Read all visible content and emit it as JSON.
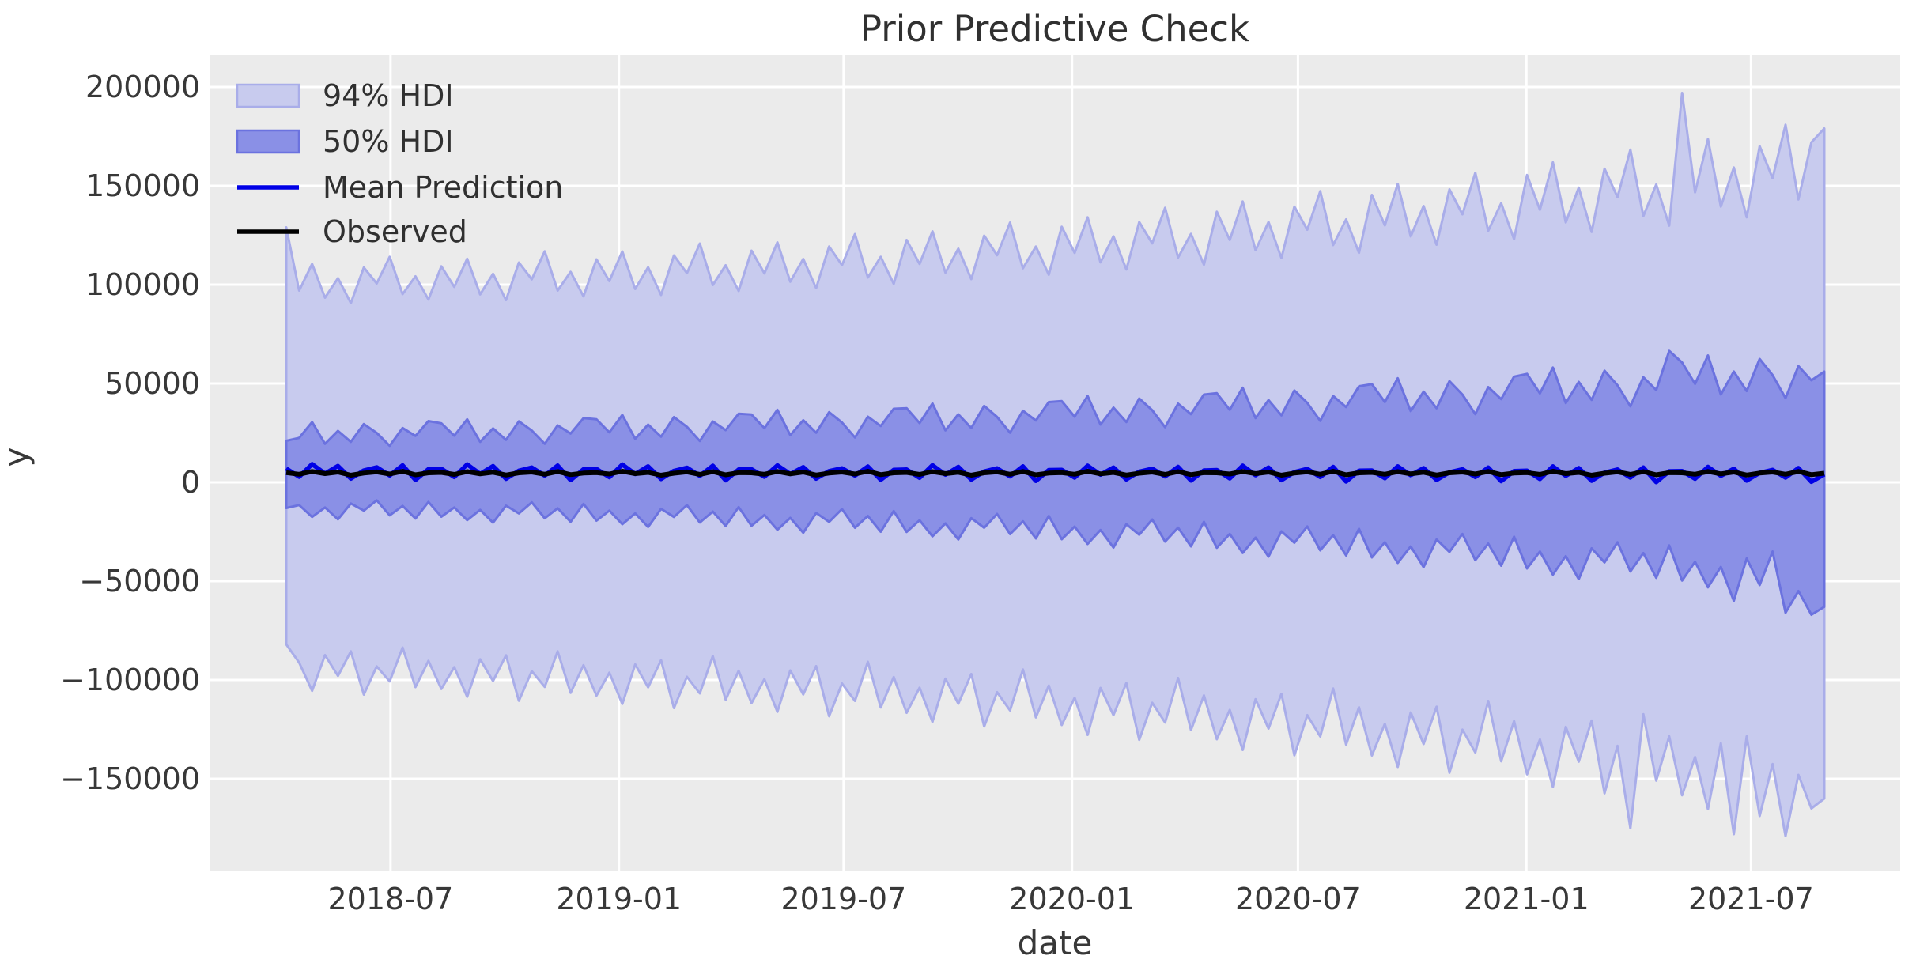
{
  "title": "Prior Predictive Check",
  "chart_data": {
    "type": "area",
    "title": "Prior Predictive Check",
    "xlabel": "date",
    "ylabel": "y",
    "grid": true,
    "legend_position": "upper left",
    "x_range": [
      "2018-04-08",
      "2021-08-29"
    ],
    "n_points": 120,
    "ylim": [
      -196400,
      216000
    ],
    "x_ticks": [
      {
        "label": "2018-07",
        "date": "2018-07-01"
      },
      {
        "label": "2019-01",
        "date": "2019-01-01"
      },
      {
        "label": "2019-07",
        "date": "2019-07-01"
      },
      {
        "label": "2020-01",
        "date": "2020-01-01"
      },
      {
        "label": "2020-07",
        "date": "2020-07-01"
      },
      {
        "label": "2021-01",
        "date": "2021-01-01"
      },
      {
        "label": "2021-07",
        "date": "2021-07-01"
      }
    ],
    "y_ticks": [
      {
        "label": "200000",
        "value": 200000
      },
      {
        "label": "150000",
        "value": 150000
      },
      {
        "label": "100000",
        "value": 100000
      },
      {
        "label": "50000",
        "value": 50000
      },
      {
        "label": "0",
        "value": 0
      },
      {
        "label": "−50000",
        "value": -50000
      },
      {
        "label": "−100000",
        "value": -100000
      },
      {
        "label": "−150000",
        "value": -150000
      }
    ],
    "legend": [
      {
        "label": "94% HDI",
        "kind": "patch",
        "fill": "#c8cbee",
        "stroke": "#a9ade9"
      },
      {
        "label": "50% HDI",
        "kind": "patch",
        "fill": "#8a90e6",
        "stroke": "#6b72df"
      },
      {
        "label": "Mean Prediction",
        "kind": "line",
        "stroke": "#0000e6"
      },
      {
        "label": "Observed",
        "kind": "line",
        "stroke": "#000000"
      }
    ],
    "colors": {
      "background": "#ffffff",
      "axes_background": "#ebebeb",
      "grid": "#ffffff",
      "hdi94_fill": "#c8cbee",
      "hdi94_edge": "#a9ade9",
      "hdi50_fill": "#8a90e6",
      "hdi50_edge": "#6b72df",
      "mean_line": "#0000e6",
      "observed_line": "#000000",
      "text": "#383838"
    },
    "series": {
      "hdi94_upper": [
        129000,
        97000,
        110500,
        93400,
        103300,
        90700,
        108700,
        100600,
        114100,
        95200,
        104200,
        92500,
        109300,
        98900,
        113100,
        95100,
        105500,
        92200,
        111200,
        102700,
        116900,
        97000,
        106500,
        94100,
        112800,
        101800,
        116800,
        97800,
        108800,
        94800,
        114800,
        105800,
        120800,
        99800,
        109800,
        96800,
        117200,
        105700,
        121400,
        101500,
        113000,
        98300,
        119300,
        109900,
        125600,
        103600,
        114100,
        100400,
        122600,
        110500,
        127000,
        106100,
        118200,
        102800,
        124800,
        114900,
        131400,
        108300,
        119300,
        105000,
        129300,
        116100,
        134100,
        111300,
        124500,
        107700,
        131700,
        120900,
        138900,
        113700,
        125700,
        110100,
        136900,
        122600,
        142100,
        117400,
        131700,
        113500,
        139500,
        127800,
        147300,
        120000,
        133000,
        116100,
        145400,
        130000,
        151000,
        124400,
        139800,
        120200,
        148200,
        135600,
        156600,
        127200,
        141200,
        123000,
        155500,
        137900,
        161900,
        131500,
        149100,
        126700,
        158700,
        144300,
        168300,
        134700,
        150700,
        129900,
        197000,
        146700,
        173700,
        139500,
        159300,
        134100,
        170100,
        153900,
        180900,
        143100,
        172000,
        179000
      ],
      "hdi94_lower": [
        -82000,
        -91200,
        -105500,
        -87400,
        -97900,
        -85500,
        -107400,
        -93100,
        -100700,
        -83600,
        -103600,
        -90300,
        -104500,
        -93500,
        -108500,
        -89500,
        -100500,
        -87500,
        -110500,
        -95500,
        -103500,
        -85500,
        -106500,
        -92500,
        -107900,
        -96300,
        -112100,
        -92100,
        -103700,
        -90000,
        -114200,
        -98400,
        -106800,
        -87900,
        -110000,
        -95300,
        -111700,
        -99600,
        -116100,
        -95200,
        -107300,
        -93000,
        -118300,
        -101800,
        -110600,
        -90800,
        -113900,
        -98500,
        -116600,
        -103900,
        -121200,
        -99300,
        -112000,
        -97000,
        -123500,
        -106200,
        -115400,
        -94700,
        -118900,
        -102800,
        -122800,
        -109000,
        -127800,
        -104000,
        -117800,
        -101500,
        -130300,
        -111500,
        -121500,
        -99000,
        -125300,
        -107800,
        -130000,
        -115100,
        -135400,
        -109700,
        -124600,
        -107000,
        -138100,
        -117800,
        -128600,
        -104300,
        -132700,
        -113800,
        -138200,
        -122200,
        -144000,
        -116400,
        -132400,
        -113500,
        -146900,
        -125100,
        -136700,
        -110600,
        -141100,
        -120800,
        -147700,
        -130100,
        -154100,
        -123700,
        -141300,
        -120500,
        -157300,
        -133300,
        -175000,
        -117300,
        -150900,
        -128500,
        -158300,
        -139000,
        -165300,
        -132000,
        -178000,
        -128500,
        -168800,
        -142500,
        -179000,
        -148000,
        -165000,
        -160000
      ],
      "hdi50_upper": [
        21000,
        22500,
        30500,
        19500,
        26000,
        20500,
        29500,
        25000,
        18500,
        27500,
        23500,
        31000,
        29900,
        23600,
        31900,
        20500,
        27300,
        21500,
        30900,
        26200,
        19500,
        28800,
        24700,
        32500,
        31900,
        25300,
        34100,
        22000,
        29200,
        23100,
        33000,
        28100,
        20900,
        30800,
        26400,
        34700,
        34300,
        27400,
        36700,
        23900,
        31400,
        25100,
        35500,
        30300,
        22700,
        33200,
        28500,
        37200,
        37500,
        30000,
        39900,
        26300,
        34400,
        27500,
        38700,
        33100,
        25100,
        36200,
        31300,
        40600,
        41100,
        33200,
        43700,
        29200,
        37800,
        30500,
        42400,
        36500,
        27900,
        39800,
        34500,
        44400,
        45100,
        36700,
        47900,
        32500,
        41600,
        33900,
        46500,
        40200,
        31100,
        43700,
        38100,
        48600,
        49700,
        40600,
        52700,
        36000,
        45900,
        37500,
        51200,
        44400,
        34500,
        48200,
        42100,
        53500,
        54900,
        45000,
        58100,
        40100,
        50800,
        41700,
        56500,
        49100,
        38500,
        53200,
        46700,
        66500,
        60600,
        49800,
        64200,
        44400,
        56100,
        46200,
        62400,
        54300,
        42600,
        58800,
        51600,
        56000
      ],
      "hdi50_lower": [
        -13000,
        -11500,
        -17500,
        -12700,
        -18700,
        -10700,
        -14300,
        -9100,
        -16700,
        -11900,
        -18300,
        -9900,
        -17400,
        -12700,
        -19100,
        -13900,
        -20400,
        -11800,
        -15700,
        -10100,
        -18200,
        -13100,
        -20000,
        -10900,
        -19400,
        -14300,
        -21200,
        -15700,
        -22600,
        -13400,
        -17500,
        -11500,
        -20300,
        -14800,
        -22100,
        -12500,
        -22000,
        -16500,
        -24000,
        -18000,
        -25500,
        -15500,
        -20000,
        -13500,
        -23000,
        -17000,
        -25000,
        -14500,
        -25100,
        -19200,
        -27300,
        -20800,
        -28900,
        -18100,
        -23000,
        -16000,
        -26200,
        -19700,
        -28400,
        -17000,
        -28800,
        -22400,
        -31200,
        -24100,
        -33000,
        -21200,
        -26500,
        -18800,
        -30000,
        -22900,
        -32400,
        -20000,
        -33100,
        -26100,
        -35700,
        -28000,
        -37600,
        -24800,
        -30600,
        -22300,
        -34400,
        -26700,
        -37000,
        -23500,
        -38000,
        -30300,
        -40800,
        -32400,
        -42900,
        -28900,
        -35200,
        -26100,
        -39400,
        -31000,
        -42200,
        -27500,
        -43600,
        -35000,
        -46700,
        -37300,
        -49000,
        -33400,
        -40500,
        -30300,
        -45100,
        -35800,
        -48300,
        -31900,
        -49700,
        -40200,
        -53100,
        -42800,
        -60000,
        -38500,
        -52000,
        -35000,
        -66000,
        -55000,
        -67000,
        -63000
      ],
      "mean_prediction": [
        7000,
        2800,
        9200,
        4400,
        8300,
        1900,
        6000,
        7600,
        3500,
        8600,
        1200,
        6700,
        6900,
        2700,
        9100,
        4300,
        8200,
        1800,
        5900,
        7500,
        3400,
        8500,
        1100,
        6600,
        6800,
        2600,
        9000,
        4200,
        8100,
        1700,
        5800,
        7400,
        3300,
        8400,
        1000,
        6500,
        6600,
        2800,
        8600,
        4200,
        7700,
        1900,
        5700,
        7100,
        3400,
        8000,
        1300,
        6300,
        6500,
        2300,
        8700,
        3900,
        7800,
        1400,
        5500,
        7100,
        3000,
        8100,
        700,
        6200,
        6300,
        2400,
        8400,
        3900,
        7500,
        1500,
        5400,
        6900,
        3000,
        7800,
        900,
        6000,
        6200,
        2000,
        8400,
        3600,
        7500,
        1100,
        5200,
        6800,
        2700,
        7800,
        400,
        5900,
        6000,
        2100,
        8100,
        3600,
        7200,
        1200,
        5100,
        6600,
        2700,
        7500,
        600,
        5700,
        5900,
        1700,
        8100,
        3300,
        7200,
        800,
        4900,
        6500,
        2400,
        7500,
        100,
        5600,
        5700,
        1800,
        7800,
        3300,
        6900,
        900,
        4800,
        6300,
        2400,
        7200,
        300,
        4000
      ],
      "observed": [
        4900,
        4100,
        5500,
        4400,
        5200,
        3600,
        4700,
        5300,
        4200,
        5600,
        3800,
        4800,
        5000,
        4000,
        5400,
        4300,
        5100,
        3700,
        4800,
        5200,
        4100,
        5500,
        3900,
        4700,
        4900,
        4200,
        5600,
        4400,
        5000,
        3600,
        4600,
        5300,
        4000,
        5400,
        3800,
        4900,
        4800,
        4100,
        5500,
        4300,
        5200,
        3700,
        4700,
        5200,
        4200,
        5600,
        3900,
        4800,
        5000,
        4000,
        5400,
        4400,
        5100,
        3600,
        4800,
        5300,
        4100,
        5500,
        3800,
        4700,
        4900,
        4100,
        5600,
        4300,
        5000,
        3700,
        4600,
        5200,
        4000,
        5400,
        3900,
        4900,
        4800,
        4200,
        5500,
        4400,
        5200,
        3600,
        4700,
        5300,
        4100,
        5600,
        3800,
        4800,
        5000,
        4100,
        5400,
        4300,
        5100,
        3700,
        4800,
        5200,
        4200,
        5500,
        3900,
        4700,
        4900,
        4000,
        5600,
        4400,
        5000,
        3600,
        4600,
        5300,
        4000,
        5400,
        3800,
        4900,
        4800,
        4100,
        5500,
        4300,
        5200,
        3700,
        4700,
        5200,
        4100,
        5500,
        3900,
        4600
      ]
    }
  }
}
